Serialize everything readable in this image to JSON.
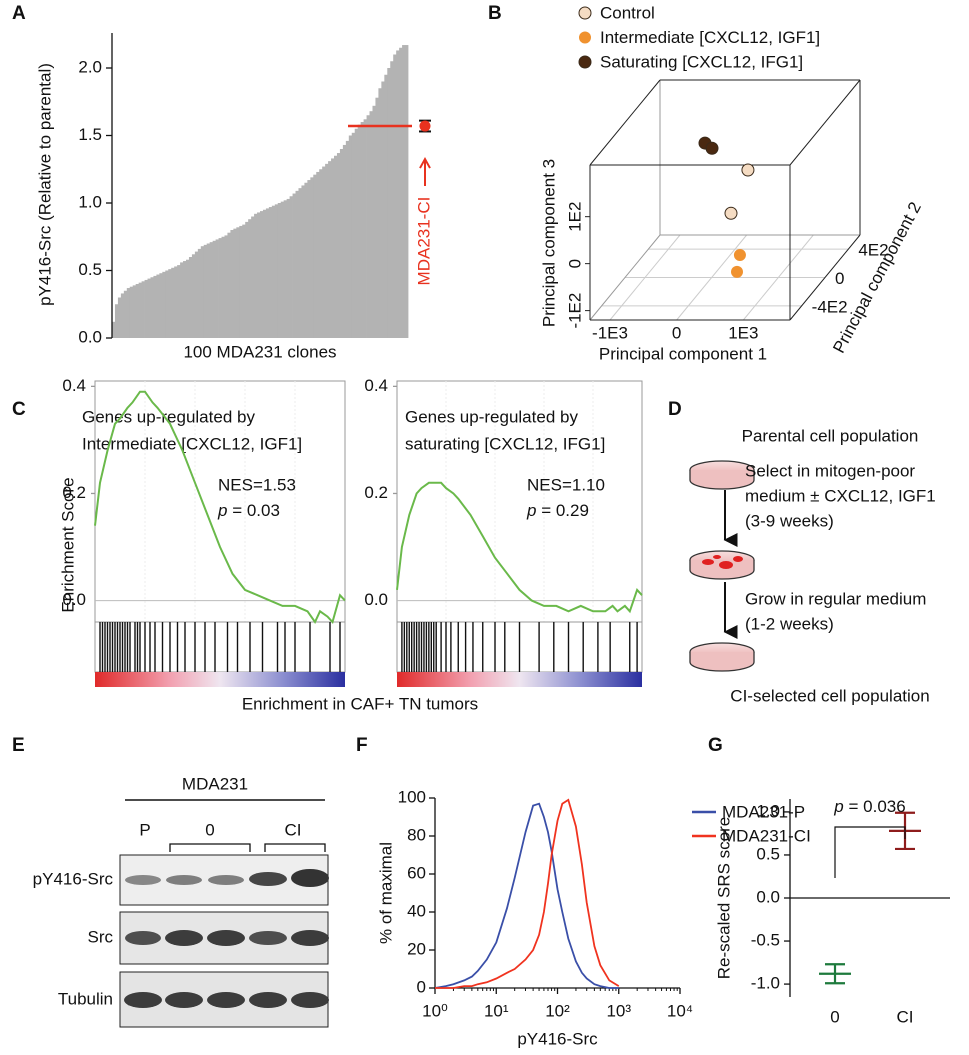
{
  "panels": [
    "A",
    "B",
    "C",
    "D",
    "E",
    "F",
    "G"
  ],
  "chart_data": [
    {
      "type": "bar",
      "ylabel": "pY416-Src (Relative to parental)",
      "xlabel": "100 MDA231 clones",
      "color": "#b3b3b3",
      "ylim": [
        0,
        2.2
      ],
      "yticks": [
        {
          "value": 0,
          "label": "0.0"
        },
        {
          "value": 0.5,
          "label": "0.5"
        },
        {
          "value": 1,
          "label": "1.0"
        },
        {
          "value": 1.5,
          "label": "1.5"
        },
        {
          "value": 2,
          "label": "2.0"
        }
      ],
      "values": [
        0.12,
        0.25,
        0.3,
        0.33,
        0.35,
        0.37,
        0.38,
        0.39,
        0.4,
        0.41,
        0.42,
        0.43,
        0.44,
        0.45,
        0.46,
        0.47,
        0.48,
        0.49,
        0.5,
        0.51,
        0.52,
        0.53,
        0.54,
        0.56,
        0.57,
        0.58,
        0.6,
        0.62,
        0.64,
        0.66,
        0.68,
        0.69,
        0.7,
        0.71,
        0.72,
        0.73,
        0.74,
        0.75,
        0.76,
        0.78,
        0.8,
        0.81,
        0.82,
        0.83,
        0.84,
        0.86,
        0.88,
        0.9,
        0.92,
        0.93,
        0.94,
        0.95,
        0.96,
        0.97,
        0.98,
        0.99,
        1.0,
        1.01,
        1.02,
        1.03,
        1.05,
        1.07,
        1.09,
        1.11,
        1.13,
        1.15,
        1.17,
        1.19,
        1.21,
        1.23,
        1.25,
        1.27,
        1.29,
        1.31,
        1.33,
        1.35,
        1.37,
        1.4,
        1.43,
        1.46,
        1.5,
        1.52,
        1.55,
        1.58,
        1.6,
        1.62,
        1.65,
        1.68,
        1.72,
        1.78,
        1.85,
        1.9,
        1.95,
        2.0,
        2.05,
        2.1,
        2.13,
        2.15,
        2.17,
        2.17
      ],
      "marker": {
        "value": 1.57,
        "error": 0.04,
        "color": "#e8321f"
      },
      "annotation": "MDA231-CI"
    },
    {
      "type": "scatter3d",
      "xlabel": "Principal component 1",
      "ylabel": "Principal component 2",
      "zlabel": "Principal component 3",
      "xlim": [
        -1300,
        1700
      ],
      "ylim": [
        -600,
        600
      ],
      "zlim": [
        -120,
        210
      ],
      "xticks": [
        {
          "value": -1000,
          "label": "-1E3"
        },
        0,
        {
          "value": 1000,
          "label": "1E3"
        }
      ],
      "yticks": [
        {
          "value": -400,
          "label": "-4E2"
        },
        0,
        {
          "value": 400,
          "label": "4E2"
        }
      ],
      "zticks": [
        {
          "value": -100,
          "label": "-1E2"
        },
        0,
        {
          "value": 100,
          "label": "1E2"
        }
      ],
      "series": [
        {
          "name": "Control",
          "color": "#f5dcc3",
          "x": [
            754,
            500
          ],
          "y": [
            -240,
            -240
          ],
          "z": [
            145,
            53
          ]
        },
        {
          "name": "Intermediate [CXCL12, IGF1]",
          "color": "#f0922f",
          "x": [
            424,
            380
          ],
          "y": [
            0,
            0
          ],
          "z": [
            -72,
            -108
          ]
        },
        {
          "name": "Saturating [CXCL12, IFG1]",
          "color": "#4a2810",
          "x": [
            -310,
            -205
          ],
          "y": [
            240,
            240
          ],
          "z": [
            130,
            119
          ]
        }
      ]
    },
    {
      "type": "line",
      "title": [
        "Genes up-regulated by",
        "Intermediate [CXCL12, IGF1]"
      ],
      "ylabel": "Enrichment Score",
      "xlabel": "Enrichment in CAF+ TN tumors",
      "nes": "NES=1.53",
      "p": {
        "symbol": "p",
        "text": " = 0.03"
      },
      "xlim": [
        0,
        100
      ],
      "ylim": [
        -0.04,
        0.41
      ],
      "yticks": [
        {
          "value": 0,
          "label": "0.0"
        },
        0.2,
        0.4
      ],
      "x": [
        0,
        2,
        5,
        8,
        10,
        13,
        15,
        18,
        20,
        23,
        25,
        30,
        35,
        40,
        45,
        50,
        55,
        60,
        65,
        70,
        75,
        80,
        85,
        88,
        90,
        93,
        95,
        98,
        100
      ],
      "series": [
        {
          "color": "#6ab94a",
          "values": [
            0.14,
            0.22,
            0.28,
            0.33,
            0.34,
            0.36,
            0.37,
            0.39,
            0.39,
            0.37,
            0.36,
            0.33,
            0.28,
            0.22,
            0.16,
            0.1,
            0.05,
            0.02,
            0.01,
            0.0,
            -0.01,
            -0.01,
            -0.02,
            -0.04,
            -0.02,
            -0.03,
            -0.04,
            0.01,
            0.0
          ]
        }
      ],
      "hits": [
        2,
        3,
        4,
        5,
        6,
        7,
        8,
        9,
        10,
        11,
        12,
        13,
        14,
        16,
        17,
        18,
        20,
        22,
        24,
        27,
        30,
        33,
        36,
        40,
        44,
        48,
        53,
        57,
        62,
        67,
        73,
        76,
        80,
        86,
        94,
        98
      ]
    },
    {
      "type": "line",
      "title": [
        "Genes up-regulated by",
        "saturating [CXCL12, IFG1]"
      ],
      "nes": "NES=1.10",
      "p": {
        "symbol": "p",
        "text": " = 0.29"
      },
      "xlim": [
        0,
        100
      ],
      "ylim": [
        -0.04,
        0.41
      ],
      "yticks": [
        {
          "value": 0,
          "label": "0.0"
        },
        0.2,
        0.4
      ],
      "x": [
        0,
        2,
        5,
        8,
        10,
        13,
        15,
        18,
        20,
        23,
        25,
        30,
        35,
        40,
        45,
        50,
        55,
        60,
        65,
        70,
        75,
        80,
        85,
        88,
        90,
        93,
        95,
        98,
        100
      ],
      "series": [
        {
          "color": "#6ab94a",
          "values": [
            0.02,
            0.1,
            0.16,
            0.2,
            0.21,
            0.22,
            0.22,
            0.22,
            0.21,
            0.2,
            0.19,
            0.16,
            0.12,
            0.08,
            0.05,
            0.02,
            0.0,
            -0.01,
            -0.01,
            -0.02,
            -0.01,
            -0.02,
            -0.02,
            -0.01,
            -0.02,
            -0.01,
            -0.02,
            0.02,
            0.01
          ]
        }
      ],
      "hits": [
        2,
        3,
        4,
        5,
        6,
        7,
        8,
        9,
        10,
        11,
        12,
        13,
        14,
        15,
        16,
        18,
        20,
        22,
        25,
        28,
        31,
        35,
        40,
        44,
        50,
        58,
        64,
        70,
        76,
        82,
        87,
        95,
        98
      ]
    },
    {
      "type": "line",
      "xscale": "log",
      "ylabel": "% of maximal",
      "xlabel": "pY416-Src",
      "xlim": [
        1,
        10000
      ],
      "ylim": [
        0,
        100
      ],
      "xticks": [
        {
          "value": 1,
          "label": "10⁰"
        },
        {
          "value": 10,
          "label": "10¹"
        },
        {
          "value": 100,
          "label": "10²"
        },
        {
          "value": 1000,
          "label": "10³"
        },
        {
          "value": 10000,
          "label": "10⁴"
        }
      ],
      "yticks": [
        0,
        20,
        40,
        60,
        80,
        100
      ],
      "x": [
        1,
        1.5,
        2,
        3,
        4,
        5,
        7,
        10,
        15,
        20,
        30,
        40,
        50,
        60,
        70,
        80,
        100,
        120,
        150,
        200,
        250,
        300,
        400,
        500,
        700,
        1000
      ],
      "series": [
        {
          "name": "MDA231-P",
          "color": "#3a4fa8",
          "values": [
            0,
            1,
            2,
            4,
            6,
            9,
            15,
            24,
            42,
            58,
            82,
            96,
            97,
            90,
            82,
            72,
            52,
            40,
            26,
            14,
            8,
            5,
            2,
            1,
            0,
            0
          ]
        },
        {
          "name": "MDA231-CI",
          "color": "#f0331f",
          "values": [
            0,
            0,
            0,
            1,
            1,
            2,
            3,
            5,
            8,
            10,
            15,
            20,
            28,
            40,
            55,
            70,
            88,
            97,
            99,
            85,
            65,
            45,
            22,
            12,
            4,
            1
          ]
        }
      ]
    },
    {
      "type": "errorbar",
      "ylabel": "Re-scaled SRS score",
      "annotation": {
        "symbol": "p",
        "text": " = 0.036"
      },
      "ylim": [
        -1.15,
        1.15
      ],
      "yticks": [
        {
          "value": -1,
          "label": "-1.0"
        },
        {
          "value": -0.5,
          "label": "-0.5"
        },
        {
          "value": 0,
          "label": "0.0"
        },
        {
          "value": 0.5,
          "label": "0.5"
        },
        {
          "value": 1,
          "label": "1.0"
        }
      ],
      "categories": [
        "0",
        "CI"
      ],
      "values": [
        -0.88,
        0.78
      ],
      "errors": [
        0.11,
        0.21
      ],
      "colors": [
        "#1d7a3c",
        "#8e1c1c"
      ]
    }
  ],
  "diagram": {
    "steps": [
      "Parental cell population",
      "CI-selected cell population"
    ],
    "arrows": [
      [
        "Select in mitogen-poor",
        "medium ± CXCL12, IGF1",
        "(3-9 weeks)"
      ],
      [
        "Grow in regular medium",
        "(1-2 weeks)"
      ]
    ]
  },
  "blot": {
    "cell_line": "MDA231",
    "lanes": [
      "P",
      "0",
      "CI"
    ],
    "rows": [
      "pY416-Src",
      "Src",
      "Tubulin"
    ]
  }
}
